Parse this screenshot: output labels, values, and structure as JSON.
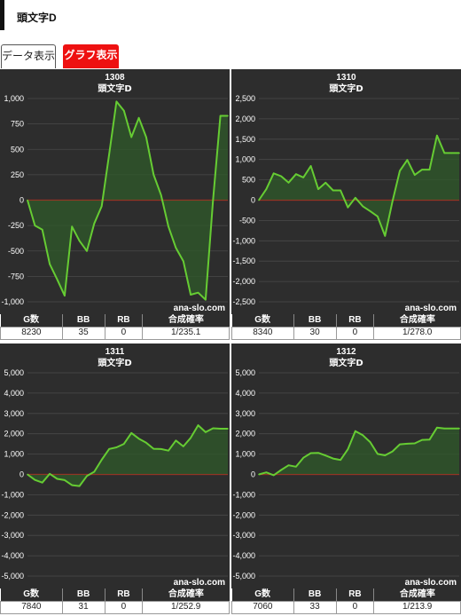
{
  "page": {
    "title": "頭文字D"
  },
  "tabs": {
    "data_label": "データ表示",
    "graph_label": "グラフ表示"
  },
  "stats_headers": [
    "G数",
    "BB",
    "RB",
    "合成確率"
  ],
  "watermark": "ana-slo.com",
  "colors": {
    "line": "#66cc33",
    "fill": "#2f5a2a",
    "zero": "#cc2222",
    "grid": "#4a4a4a",
    "bg": "#2d2d2d",
    "tab_active": "#ee1111"
  },
  "chart_data": [
    {
      "type": "area",
      "title": "1308",
      "subtitle": "頭文字D",
      "ylim": [
        -1000,
        1000
      ],
      "yticks": [
        1000,
        750,
        500,
        250,
        0,
        -250,
        -500,
        -750,
        -1000
      ],
      "ytick_labels": [
        "1,000",
        "750",
        "500",
        "250",
        "0",
        "-250",
        "-500",
        "-750",
        "-1,000"
      ],
      "grid": true,
      "y": [
        0,
        -250,
        -290,
        -630,
        -780,
        -940,
        -260,
        -400,
        -500,
        -230,
        -60,
        450,
        970,
        880,
        620,
        810,
        620,
        250,
        50,
        -260,
        -470,
        -600,
        -930,
        -910,
        -980,
        0,
        830,
        830
      ]
    },
    {
      "type": "area",
      "title": "1310",
      "subtitle": "頭文字D",
      "ylim": [
        -2500,
        2500
      ],
      "yticks": [
        2500,
        2000,
        1500,
        1000,
        500,
        0,
        -500,
        -1000,
        -1500,
        -2000,
        -2500
      ],
      "ytick_labels": [
        "2,500",
        "2,000",
        "1,500",
        "1,000",
        "500",
        "0",
        "-500",
        "-1,000",
        "-1,500",
        "-2,000",
        "-2,500"
      ],
      "grid": true,
      "y": [
        0,
        270,
        660,
        590,
        430,
        640,
        560,
        840,
        270,
        430,
        240,
        240,
        -180,
        60,
        -150,
        -270,
        -400,
        -880,
        -30,
        720,
        990,
        620,
        750,
        750,
        1590,
        1160,
        1160,
        1160
      ]
    },
    {
      "type": "area",
      "title": "1311",
      "subtitle": "頭文字D",
      "ylim": [
        -5000,
        5000
      ],
      "yticks": [
        5000,
        4000,
        3000,
        2000,
        1000,
        0,
        -1000,
        -2000,
        -3000,
        -4000,
        -5000
      ],
      "ytick_labels": [
        "5,000",
        "4,000",
        "3,000",
        "2,000",
        "1,000",
        "0",
        "-1,000",
        "-2,000",
        "-3,000",
        "-4,000",
        "-5,000"
      ],
      "grid": true,
      "y": [
        0,
        -270,
        -400,
        30,
        -220,
        -280,
        -530,
        -570,
        -80,
        130,
        720,
        1250,
        1330,
        1500,
        2040,
        1760,
        1560,
        1260,
        1250,
        1170,
        1670,
        1380,
        1800,
        2420,
        2080,
        2270,
        2250,
        2250
      ]
    },
    {
      "type": "area",
      "title": "1312",
      "subtitle": "頭文字D",
      "ylim": [
        -5000,
        5000
      ],
      "yticks": [
        5000,
        4000,
        3000,
        2000,
        1000,
        0,
        -1000,
        -2000,
        -3000,
        -4000,
        -5000
      ],
      "ytick_labels": [
        "5,000",
        "4,000",
        "3,000",
        "2,000",
        "1,000",
        "0",
        "-1,000",
        "-2,000",
        "-3,000",
        "-4,000",
        "-5,000"
      ],
      "grid": true,
      "y": [
        0,
        100,
        -40,
        220,
        450,
        380,
        820,
        1050,
        1060,
        930,
        780,
        710,
        1240,
        2130,
        1930,
        1590,
        1010,
        940,
        1130,
        1480,
        1510,
        1530,
        1700,
        1710,
        2300,
        2260,
        2260,
        2260
      ]
    }
  ],
  "stats": [
    {
      "games": "8230",
      "bb": "35",
      "rb": "0",
      "rate": "1/235.1"
    },
    {
      "games": "8340",
      "bb": "30",
      "rb": "0",
      "rate": "1/278.0"
    },
    {
      "games": "7840",
      "bb": "31",
      "rb": "0",
      "rate": "1/252.9"
    },
    {
      "games": "7060",
      "bb": "33",
      "rb": "0",
      "rate": "1/213.9"
    }
  ]
}
